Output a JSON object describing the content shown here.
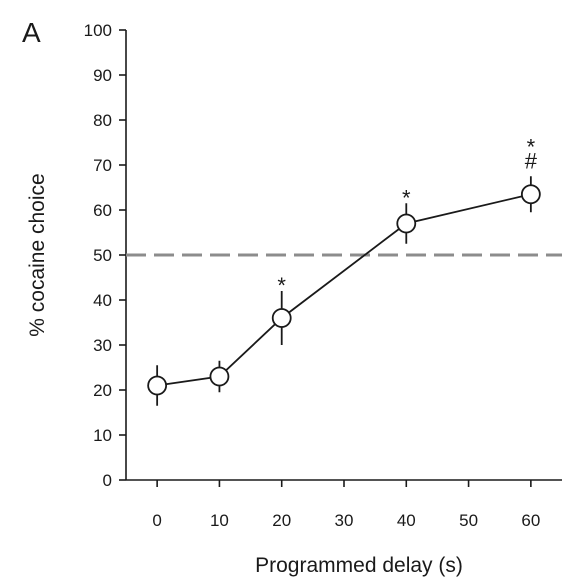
{
  "chart_data": {
    "type": "line",
    "panel_label": "A",
    "title": "",
    "xlabel": "Programmed delay (s)",
    "ylabel": "% cocaine choice",
    "xlim": [
      -5,
      65
    ],
    "ylim": [
      0,
      100
    ],
    "xticks": [
      0,
      10,
      20,
      30,
      40,
      50,
      60
    ],
    "xtick_labels": [
      "0",
      "10",
      "20",
      "30",
      "40",
      "50",
      "60"
    ],
    "yticks": [
      0,
      10,
      20,
      30,
      40,
      50,
      60,
      70,
      80,
      90,
      100
    ],
    "ytick_labels": [
      "0",
      "10",
      "20",
      "30",
      "40",
      "50",
      "60",
      "70",
      "80",
      "90",
      "100"
    ],
    "grid": false,
    "legend": "none",
    "series": [
      {
        "x": [
          0,
          10,
          20,
          40,
          60
        ],
        "y": [
          21,
          23,
          36,
          57,
          63.5
        ],
        "error": [
          4.5,
          3.5,
          6,
          4.5,
          4
        ],
        "marker": "open-circle",
        "color": "#1a1a1a"
      }
    ],
    "reference_line": {
      "y": 50,
      "style": "dashed",
      "color": "#8c8c8c"
    },
    "annotations": [
      {
        "x": 20,
        "text": "*",
        "above": 42
      },
      {
        "x": 40,
        "text": "*",
        "above": 61.5
      },
      {
        "x": 60,
        "text": "#",
        "above": 67.5
      },
      {
        "x": 60,
        "text": "*",
        "above": 67.5,
        "stack": 1
      }
    ]
  }
}
